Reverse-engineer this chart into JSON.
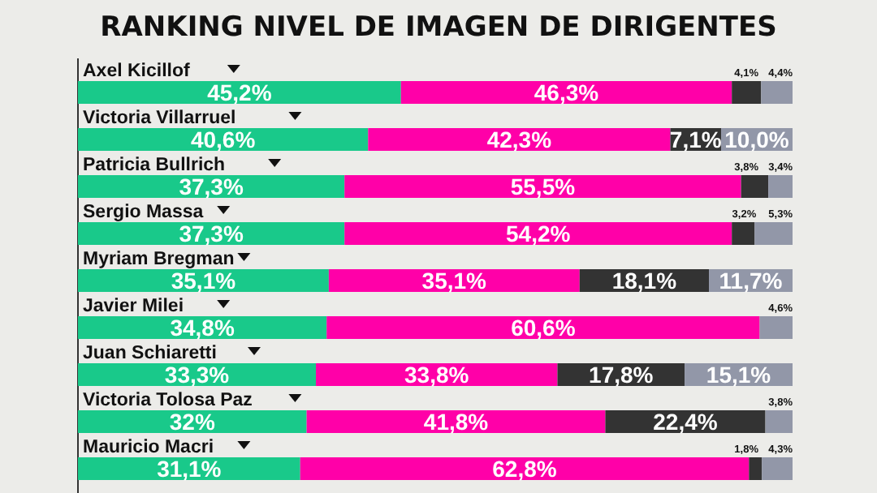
{
  "chart_data": {
    "type": "bar",
    "orientation": "horizontal",
    "stacked": true,
    "title": "RANKING NIVEL DE IMAGEN DE DIRIGENTES",
    "categories": [
      "Axel Kicillof",
      "Victoria Villarruel",
      "Patricia Bullrich",
      "Sergio Massa",
      "Myriam Bregman",
      "Javier Milei",
      "Juan Schiaretti",
      "Victoria Tolosa Paz",
      "Mauricio Macri"
    ],
    "xlim": [
      0,
      100
    ],
    "series": [
      {
        "color": "#19c98a",
        "values": [
          45.2,
          40.6,
          37.3,
          37.3,
          35.1,
          34.8,
          33.3,
          32,
          31.1
        ],
        "value_labels": [
          "45,2%",
          "40,6%",
          "37,3%",
          "37,3%",
          "35,1%",
          "34,8%",
          "33,3%",
          "32%",
          "31,1%"
        ]
      },
      {
        "color": "#ff00a8",
        "values": [
          46.3,
          42.3,
          55.5,
          54.2,
          35.1,
          60.6,
          33.8,
          41.8,
          62.8
        ],
        "value_labels": [
          "46,3%",
          "42,3%",
          "55,5%",
          "54,2%",
          "35,1%",
          "60,6%",
          "33,8%",
          "41,8%",
          "62,8%"
        ]
      },
      {
        "color": "#333333",
        "values": [
          4.1,
          7.1,
          3.8,
          3.2,
          18.1,
          0,
          17.8,
          22.4,
          1.8
        ],
        "value_labels": [
          "4,1%",
          "7,1%",
          "3,8%",
          "3,2%",
          "18,1%",
          null,
          "17,8%",
          "22,4%",
          "1,8%"
        ]
      },
      {
        "color": "#9297a8",
        "values": [
          4.4,
          10.0,
          3.4,
          5.3,
          11.7,
          4.6,
          15.1,
          3.8,
          4.3
        ],
        "value_labels": [
          "4,4%",
          "10,0%",
          "3,4%",
          "5,3%",
          "11,7%",
          "4,6%",
          "15,1%",
          "3,8%",
          "4,3%"
        ]
      }
    ]
  }
}
